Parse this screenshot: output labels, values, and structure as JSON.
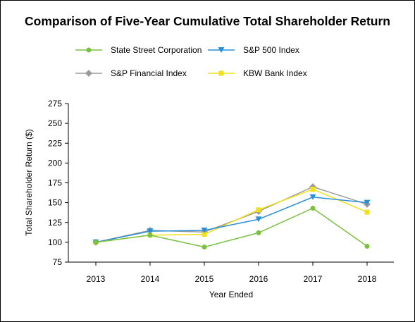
{
  "chart_data": {
    "type": "line",
    "title": "Comparison of Five-Year Cumulative Total Shareholder Return",
    "xlabel": "Year Ended",
    "ylabel": "Total Shareholder Return ($)",
    "x": [
      "2013",
      "2014",
      "2015",
      "2016",
      "2017",
      "2018"
    ],
    "ylim": [
      75,
      275
    ],
    "yticks": [
      75,
      100,
      125,
      150,
      175,
      200,
      225,
      250,
      275
    ],
    "grid": false,
    "legend_position": "top",
    "series": [
      {
        "name": "State Street Corporation",
        "color": "#7ac142",
        "marker": "circle",
        "values": [
          100,
          109,
          94,
          112,
          143,
          95
        ]
      },
      {
        "name": "S&P 500 Index",
        "color": "#2b8fd6",
        "marker": "triangle-down",
        "values": [
          100,
          114,
          115,
          129,
          157,
          150
        ]
      },
      {
        "name": "S&P Financial Index",
        "color": "#9b9b9b",
        "marker": "diamond",
        "values": [
          100,
          115,
          113,
          139,
          170,
          148
        ]
      },
      {
        "name": "KBW Bank Index",
        "color": "#f2e01a",
        "marker": "square",
        "values": [
          100,
          109,
          110,
          141,
          167,
          138
        ]
      }
    ]
  }
}
